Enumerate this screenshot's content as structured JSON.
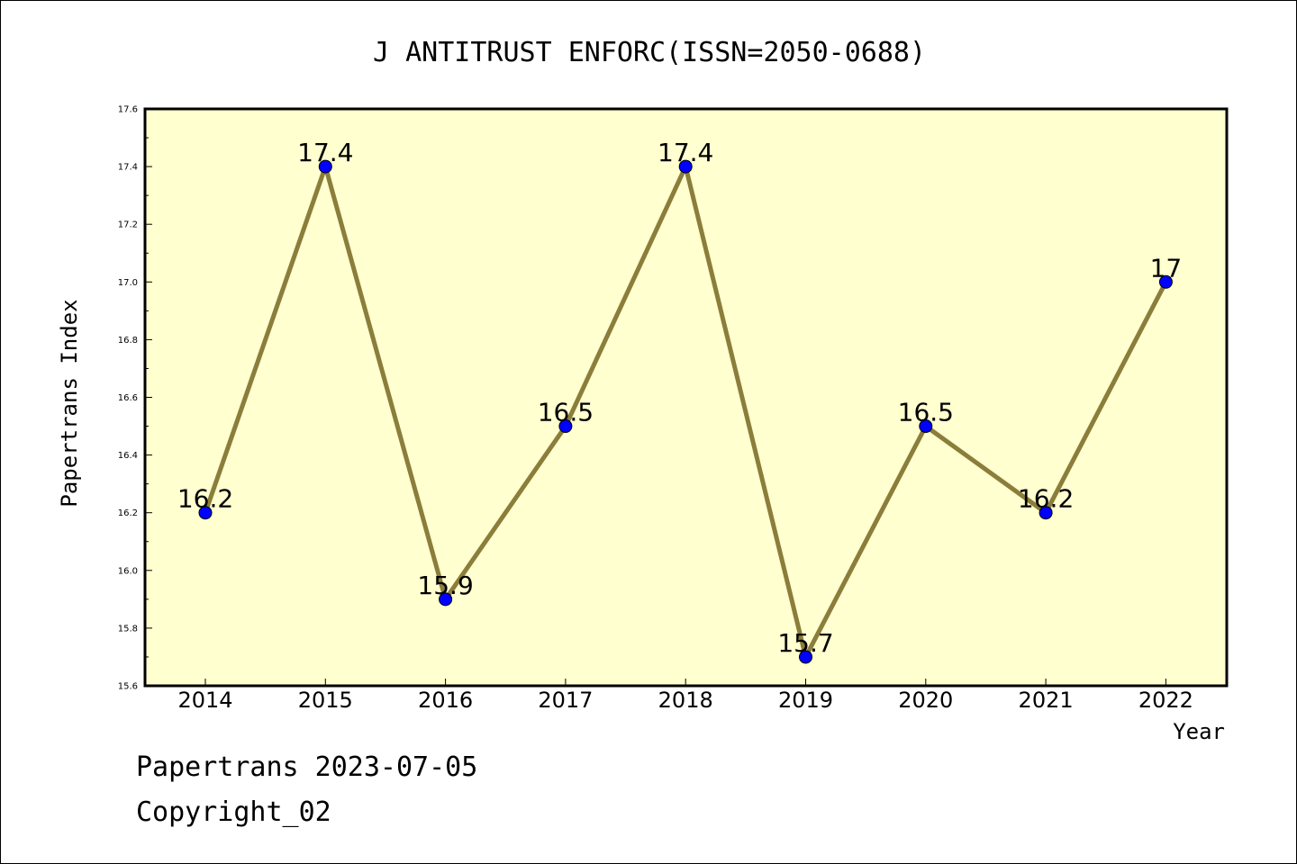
{
  "chart_data": {
    "type": "line",
    "title": "J ANTITRUST ENFORC(ISSN=2050-0688)",
    "xlabel": "Year",
    "ylabel": "Papertrans Index",
    "categories": [
      "2014",
      "2015",
      "2016",
      "2017",
      "2018",
      "2019",
      "2020",
      "2021",
      "2022"
    ],
    "values": [
      16.2,
      17.4,
      15.9,
      16.5,
      17.4,
      15.7,
      16.5,
      16.2,
      17
    ],
    "data_labels": [
      "16.2",
      "17.4",
      "15.9",
      "16.5",
      "17.4",
      "15.7",
      "16.5",
      "16.2",
      "17"
    ],
    "ylim": [
      15.6,
      17.6
    ],
    "yticks": [
      "15.6",
      "15.8",
      "16.0",
      "16.2",
      "16.4",
      "16.6",
      "16.8",
      "17.0",
      "17.2",
      "17.4",
      "17.6"
    ],
    "grid": false,
    "colors": {
      "plot_background": "#FFFFD0",
      "line": "#8B7D3A",
      "marker": "#0000FF"
    }
  },
  "footer": {
    "line1": "Papertrans 2023-07-05",
    "line2": "Copyright_02"
  }
}
